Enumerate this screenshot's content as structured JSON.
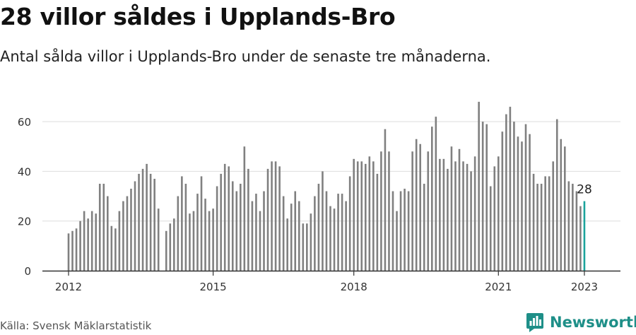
{
  "header": {
    "title": "28 villor såldes i Upplands-Bro",
    "subtitle": "Antal sålda villor i Upplands-Bro under de senaste tre månaderna."
  },
  "footer": {
    "source": "Källa: Svensk Mäklarstatistik",
    "brand": "Newsworthy"
  },
  "colors": {
    "bar": "#808080",
    "highlight": "#1ba39c",
    "grid": "#dddddd",
    "axis": "#333333",
    "brand": "#1e8f88"
  },
  "icons": {
    "brand_logo": "bar-chart-speech-icon"
  },
  "chart_data": {
    "type": "bar",
    "title": "28 villor såldes i Upplands-Bro",
    "subtitle": "Antal sålda villor i Upplands-Bro under de senaste tre månaderna.",
    "ylim": [
      0,
      70
    ],
    "yticks": [
      0,
      20,
      40,
      60
    ],
    "xticks": [
      "2012",
      "2015",
      "2018",
      "2021",
      "2023"
    ],
    "grid": true,
    "highlight_label": "28",
    "values": [
      15,
      16,
      17,
      20,
      24,
      21,
      24,
      23,
      35,
      35,
      30,
      18,
      17,
      24,
      28,
      30,
      33,
      36,
      39,
      41,
      43,
      39,
      37,
      25,
      null,
      16,
      19,
      21,
      30,
      38,
      35,
      23,
      24,
      31,
      38,
      29,
      24,
      25,
      34,
      39,
      43,
      42,
      36,
      32,
      35,
      50,
      41,
      28,
      31,
      24,
      32,
      41,
      44,
      44,
      42,
      30,
      21,
      27,
      32,
      28,
      19,
      19,
      23,
      30,
      35,
      40,
      32,
      26,
      25,
      31,
      31,
      28,
      38,
      45,
      44,
      44,
      43,
      46,
      44,
      39,
      48,
      57,
      48,
      32,
      24,
      32,
      33,
      32,
      48,
      53,
      51,
      35,
      48,
      58,
      62,
      45,
      45,
      41,
      50,
      44,
      49,
      44,
      43,
      40,
      46,
      68,
      60,
      59,
      34,
      42,
      46,
      56,
      63,
      66,
      60,
      54,
      52,
      59,
      55,
      39,
      35,
      35,
      38,
      38,
      44,
      61,
      53,
      50,
      36,
      35,
      32,
      26,
      28
    ]
  }
}
